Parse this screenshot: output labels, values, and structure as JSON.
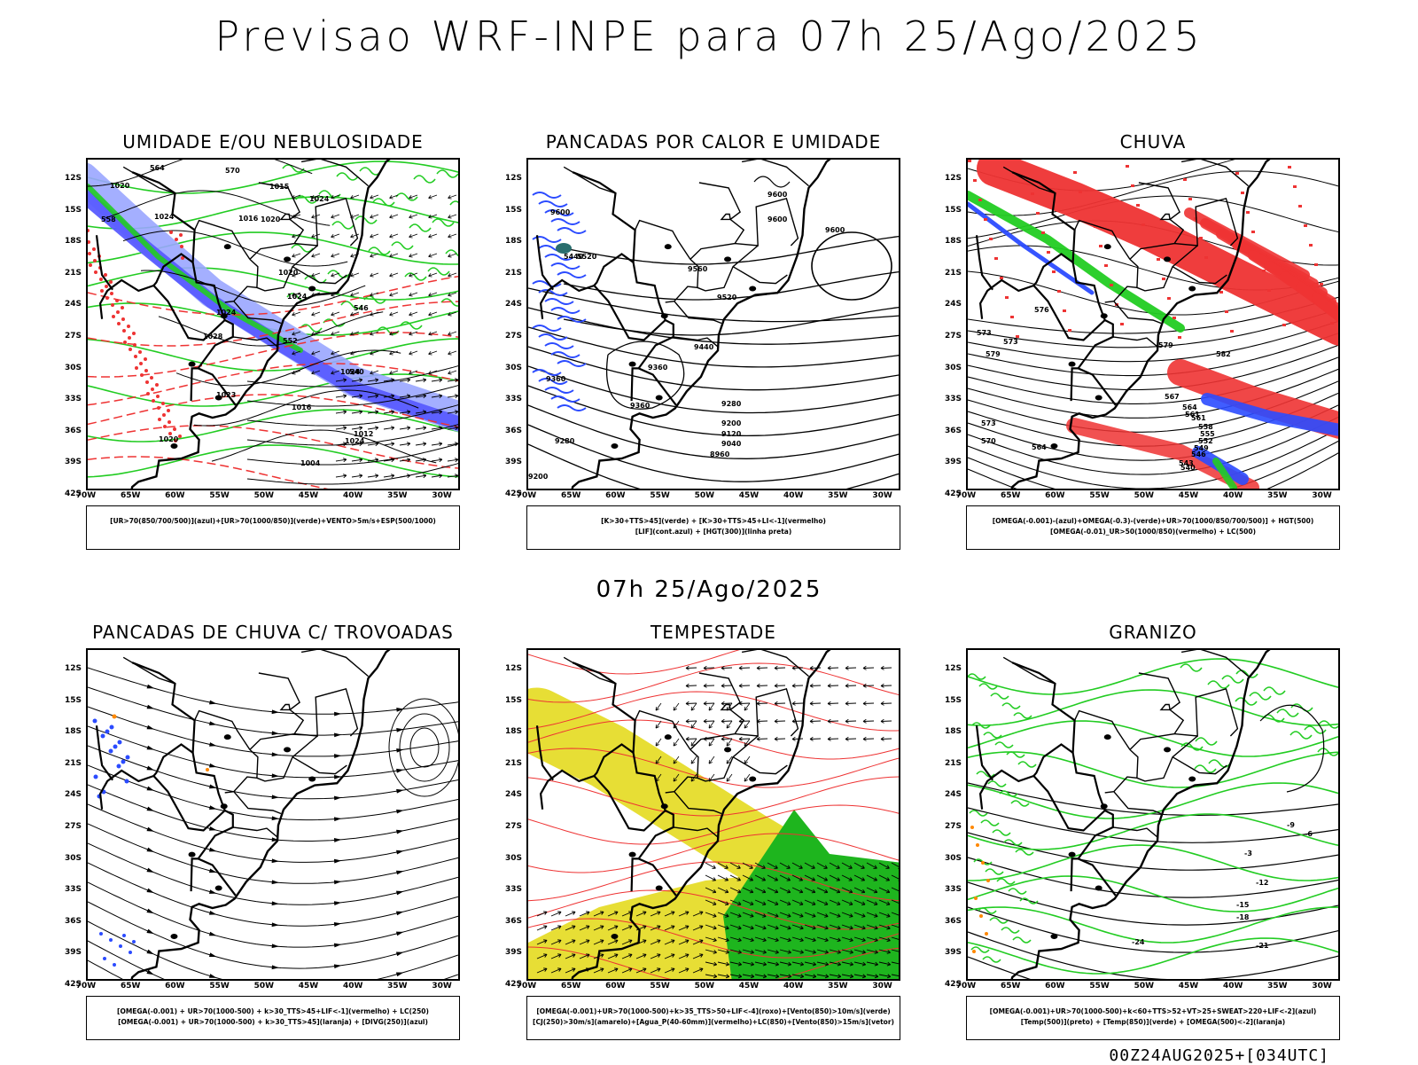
{
  "header": {
    "title": "Previsao WRF-INPE  para 07h 25/Ago/2025"
  },
  "subheader": {
    "time": "07h 25/Ago/2025"
  },
  "footer": {
    "run": "00Z24AUG2025+[034UTC]"
  },
  "axes": {
    "lat_labels": [
      "12S",
      "15S",
      "18S",
      "21S",
      "24S",
      "27S",
      "30S",
      "33S",
      "36S",
      "39S",
      "42S"
    ],
    "lon_labels": [
      "70W",
      "65W",
      "60W",
      "55W",
      "50W",
      "45W",
      "40W",
      "35W",
      "30W"
    ]
  },
  "colors": {
    "blue": "#2b4bff",
    "green": "#22cc22",
    "red": "#ee3333",
    "yellow": "#e6dc2a",
    "orange": "#ff8800"
  },
  "panels": [
    {
      "title": "UMIDADE E/OU NEBULOSIDADE",
      "legend": [
        "[UR>70(850/700/500)](azul)+[UR>70(1000/850)](verde)+VENTO>5m/s+ESP(500/1000)"
      ]
    },
    {
      "title": "PANCADAS POR CALOR E UMIDADE",
      "legend": [
        "[K>30+TTS>45](verde) + [K>30+TTS>45+LI<-1](vermelho)",
        "[LIF](cont.azul) + [HGT(300)](linha preta)"
      ]
    },
    {
      "title": "CHUVA",
      "legend": [
        "[OMEGA(-0.001)-(azul)+OMEGA(-0.3)-(verde)+UR>70(1000/850/700/500)] + HGT(500)",
        "[OMEGA(-0.01)_UR>50(1000/850)(vermelho) + LC(500)"
      ]
    },
    {
      "title": "PANCADAS DE CHUVA C/ TROVOADAS",
      "legend": [
        "[OMEGA(-0.001) + UR>70(1000-500) + k>30_TTS>45+LIF<-1](vermelho) + LC(250)",
        "[OMEGA(-0.001) + UR>70(1000-500) + k>30_TTS>45](laranja) + [DIVG(250)](azul)"
      ]
    },
    {
      "title": "TEMPESTADE",
      "legend": [
        "[OMEGA(-0.001)+UR>70(1000-500)+k>35_TTS>50+LIF<-4](roxo)+[Vento(850)>10m/s](verde)",
        "[CJ(250)>30m/s](amarelo)+[Agua_P(40-60mm)](vermelho)+LC(850)+[Vento(850)>15m/s](vetor)"
      ]
    },
    {
      "title": "GRANIZO",
      "legend": [
        "[OMEGA(-0.001)+UR>70(1000-500)+k<60+TTS>52+VT>25+SWEAT>220+LIF<-2](azul)",
        "[Temp(500)](preto) + [Temp(850)](verde) + [OMEGA(500)<-2](laranja)"
      ]
    }
  ],
  "contour_labels": {
    "p1": [
      "1020",
      "1024",
      "1016",
      "1015",
      "1020",
      "1024",
      "1020",
      "1024",
      "1024",
      "1028",
      "1024",
      "1023",
      "1016",
      "1012",
      "1020",
      "1004",
      "1024",
      "570",
      "564",
      "558",
      "552",
      "546",
      "540"
    ],
    "p2": [
      "9600",
      "9600",
      "9600",
      "9600",
      "9560",
      "9520",
      "9440",
      "9360",
      "9360",
      "9280",
      "9200",
      "9120",
      "9040",
      "8960",
      "9280",
      "9200",
      "5440",
      "5520",
      "9360"
    ],
    "p3": [
      "573",
      "573",
      "579",
      "567",
      "564",
      "561",
      "558",
      "555",
      "552",
      "549",
      "546",
      "543",
      "540",
      "582",
      "579",
      "576",
      "573",
      "570",
      "564",
      "561"
    ],
    "p6": [
      "-3",
      "-12",
      "-15",
      "-18",
      "-21",
      "-24",
      "-9",
      "-6"
    ]
  }
}
